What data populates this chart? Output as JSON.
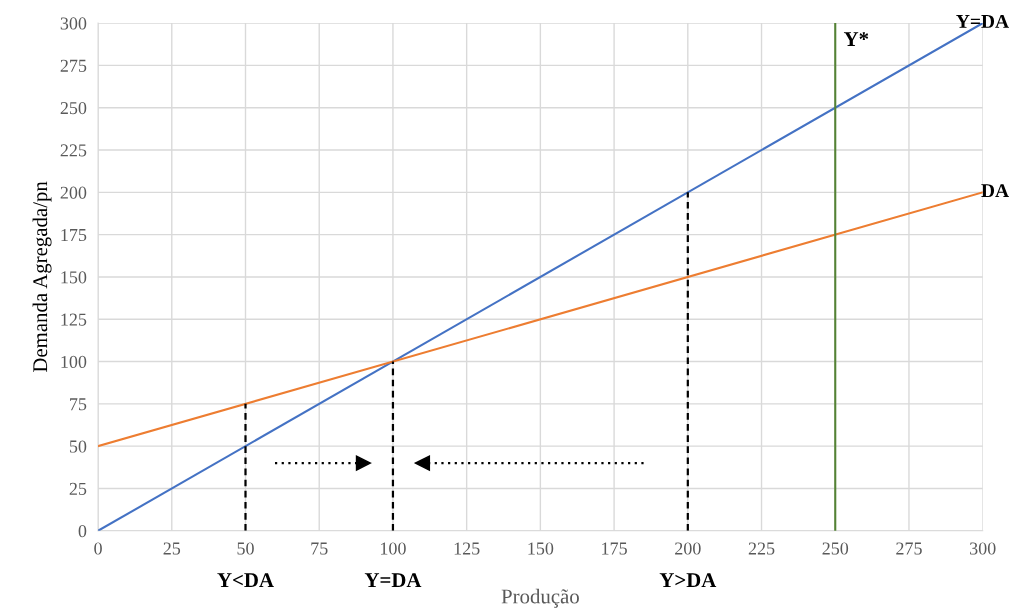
{
  "chart_data": {
    "type": "line",
    "xlabel": "Produção",
    "ylabel": "Demanda Agregada/pn",
    "xlim": [
      0,
      300
    ],
    "ylim": [
      0,
      300
    ],
    "xticks": [
      0,
      25,
      50,
      75,
      100,
      125,
      150,
      175,
      200,
      225,
      250,
      275,
      300
    ],
    "yticks": [
      0,
      25,
      50,
      75,
      100,
      125,
      150,
      175,
      200,
      225,
      250,
      275,
      300
    ],
    "grid": true,
    "marker": "none",
    "line_style": "solid",
    "series": [
      {
        "name": "Y=DA",
        "color": "#4472c4",
        "x": [
          0,
          300
        ],
        "values": [
          0,
          300
        ]
      },
      {
        "name": "DA",
        "color": "#ed7d31",
        "x": [
          0,
          300
        ],
        "values": [
          50,
          200
        ]
      },
      {
        "color": "#000000",
        "x": [
          50,
          50
        ],
        "values": [
          0,
          75
        ],
        "line_style": "dashed"
      },
      {
        "color": "#000000",
        "x": [
          100,
          100
        ],
        "values": [
          0,
          100
        ],
        "line_style": "dashed"
      },
      {
        "color": "#000000",
        "x": [
          200,
          200
        ],
        "values": [
          0,
          200
        ],
        "line_style": "dashed"
      },
      {
        "color": "#000000",
        "x": [
          60,
          90
        ],
        "values": [
          40,
          40
        ],
        "line_style": "dotted",
        "marker": "triangle"
      },
      {
        "color": "#000000",
        "x": [
          185,
          110
        ],
        "values": [
          40,
          40
        ],
        "line_style": "dotted",
        "marker": "triangle"
      }
    ],
    "ref_lines": [
      {
        "axis": "x",
        "value": 250,
        "label": "Y*",
        "color": "#548235"
      }
    ],
    "annotations": [
      {
        "text": "Y<DA",
        "x": 50,
        "y": 0
      },
      {
        "text": "Y=DA",
        "x": 100,
        "y": 0
      },
      {
        "text": "Y>DA",
        "x": 200,
        "y": 0
      }
    ]
  }
}
